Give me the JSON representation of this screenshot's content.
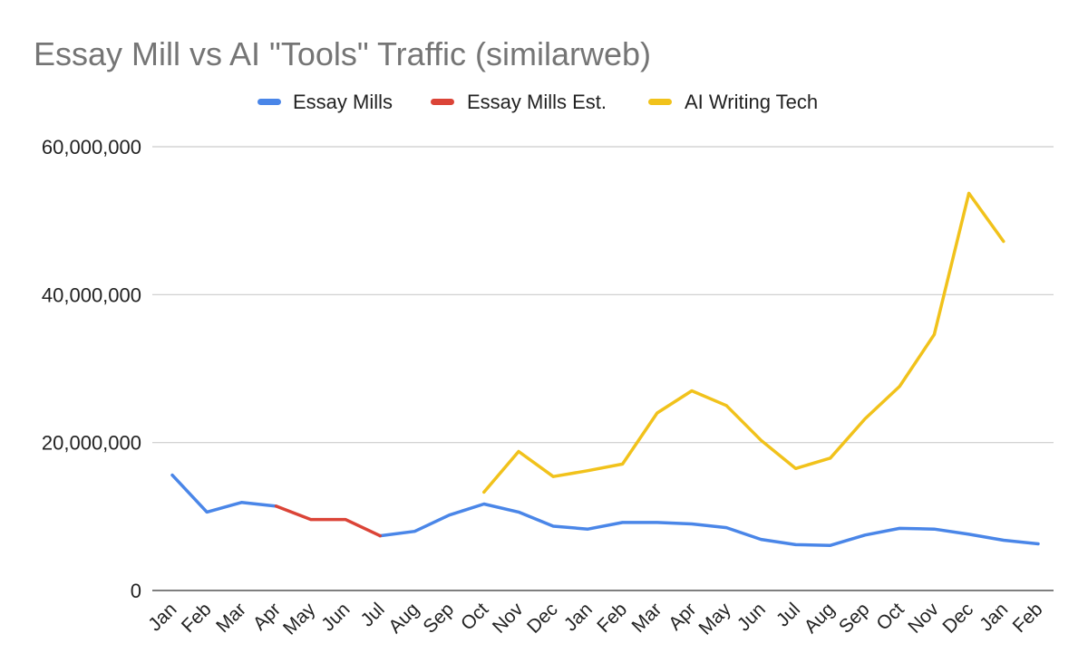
{
  "chart_data": {
    "type": "line",
    "title": "Essay Mill vs AI \"Tools\" Traffic (similarweb)",
    "xlabel": "",
    "ylabel": "",
    "categories": [
      "Jan",
      "Feb",
      "Mar",
      "Apr",
      "May",
      "Jun",
      "Jul",
      "Aug",
      "Sep",
      "Oct",
      "Nov",
      "Dec",
      "Jan",
      "Feb",
      "Mar",
      "Apr",
      "May",
      "Jun",
      "Jul",
      "Aug",
      "Sep",
      "Oct",
      "Nov",
      "Dec",
      "Jan",
      "Feb"
    ],
    "ylim": [
      0,
      60000000
    ],
    "yticks": [
      {
        "value": 0,
        "label": "0"
      },
      {
        "value": 20000000,
        "label": "20,000,000"
      },
      {
        "value": 40000000,
        "label": "40,000,000"
      },
      {
        "value": 60000000,
        "label": "60,000,000"
      }
    ],
    "grid": true,
    "legend_position": "top",
    "series": [
      {
        "name": "Essay Mills",
        "color": "#4a86e8",
        "values": [
          15600000,
          10600000,
          11900000,
          11400000,
          null,
          null,
          7400000,
          8000000,
          10200000,
          11700000,
          10600000,
          8700000,
          8300000,
          9200000,
          9200000,
          9000000,
          8500000,
          6900000,
          6200000,
          6100000,
          7500000,
          8400000,
          8300000,
          7600000,
          6800000,
          6300000
        ]
      },
      {
        "name": "Essay Mills Est.",
        "color": "#db4437",
        "values": [
          null,
          null,
          null,
          11400000,
          9600000,
          9600000,
          7400000,
          null,
          null,
          null,
          null,
          null,
          null,
          null,
          null,
          null,
          null,
          null,
          null,
          null,
          null,
          null,
          null,
          null,
          null,
          null
        ]
      },
      {
        "name": "AI Writing Tech",
        "color": "#f1c21b",
        "values": [
          null,
          null,
          null,
          null,
          null,
          null,
          null,
          null,
          null,
          13300000,
          18800000,
          15400000,
          16200000,
          17100000,
          24000000,
          27000000,
          25000000,
          20300000,
          16500000,
          17900000,
          23200000,
          27600000,
          34600000,
          53700000,
          47200000,
          null
        ]
      }
    ]
  }
}
